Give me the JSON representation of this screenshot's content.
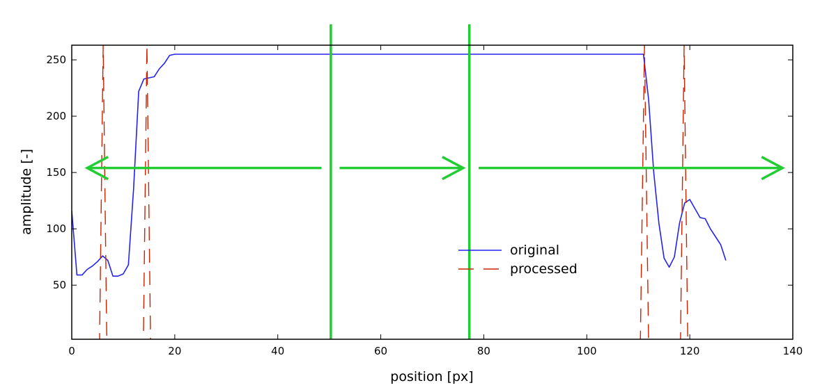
{
  "chart_data": {
    "type": "line",
    "xlabel": "position [px]",
    "ylabel": "amplitude [-]",
    "xlim": [
      0,
      140
    ],
    "ylim": [
      2,
      263
    ],
    "x_ticks": [
      0,
      20,
      40,
      60,
      80,
      100,
      120,
      140
    ],
    "y_ticks": [
      50,
      100,
      150,
      200,
      250
    ],
    "grid": false,
    "legend_position": "center-right",
    "series": [
      {
        "name": "original",
        "color": "#2222ee",
        "style": "solid",
        "x": [
          0,
          1,
          2,
          3,
          4,
          5,
          6,
          7,
          8,
          9,
          10,
          11,
          12,
          13,
          14,
          15,
          16,
          17,
          18,
          19,
          20,
          21,
          110,
          111,
          112,
          113,
          114,
          115,
          116,
          117,
          118,
          119,
          120,
          121,
          122,
          123,
          124,
          125,
          126,
          127
        ],
        "y": [
          116,
          59,
          59,
          64,
          67,
          71,
          76,
          72,
          58,
          58,
          60,
          68,
          135,
          222,
          233,
          234,
          235,
          242,
          247,
          254,
          255,
          255,
          255,
          255,
          215,
          150,
          105,
          74,
          66,
          75,
          105,
          123,
          126,
          118,
          110,
          109,
          100,
          93,
          86,
          72
        ]
      },
      {
        "name": "processed",
        "color": "#cc2200",
        "style": "dashed",
        "x": [
          0,
          5.4,
          6.1,
          6.8,
          13.9,
          14.6,
          15.3,
          110.4,
          111.2,
          112.0,
          118.2,
          118.9,
          119.6,
          127
        ],
        "y": [
          0,
          0,
          263,
          0,
          0,
          263,
          0,
          0,
          263,
          0,
          0,
          263,
          0,
          0
        ]
      }
    ],
    "annotations": {
      "color": "#22cc33",
      "vertical_lines_x": [
        50.3,
        77.2
      ],
      "arrows": [
        {
          "from": 48.5,
          "to": 3,
          "y": 154
        },
        {
          "from": 52,
          "to": 76,
          "y": 154
        },
        {
          "from": 79,
          "to": 138,
          "y": 154
        }
      ]
    }
  }
}
